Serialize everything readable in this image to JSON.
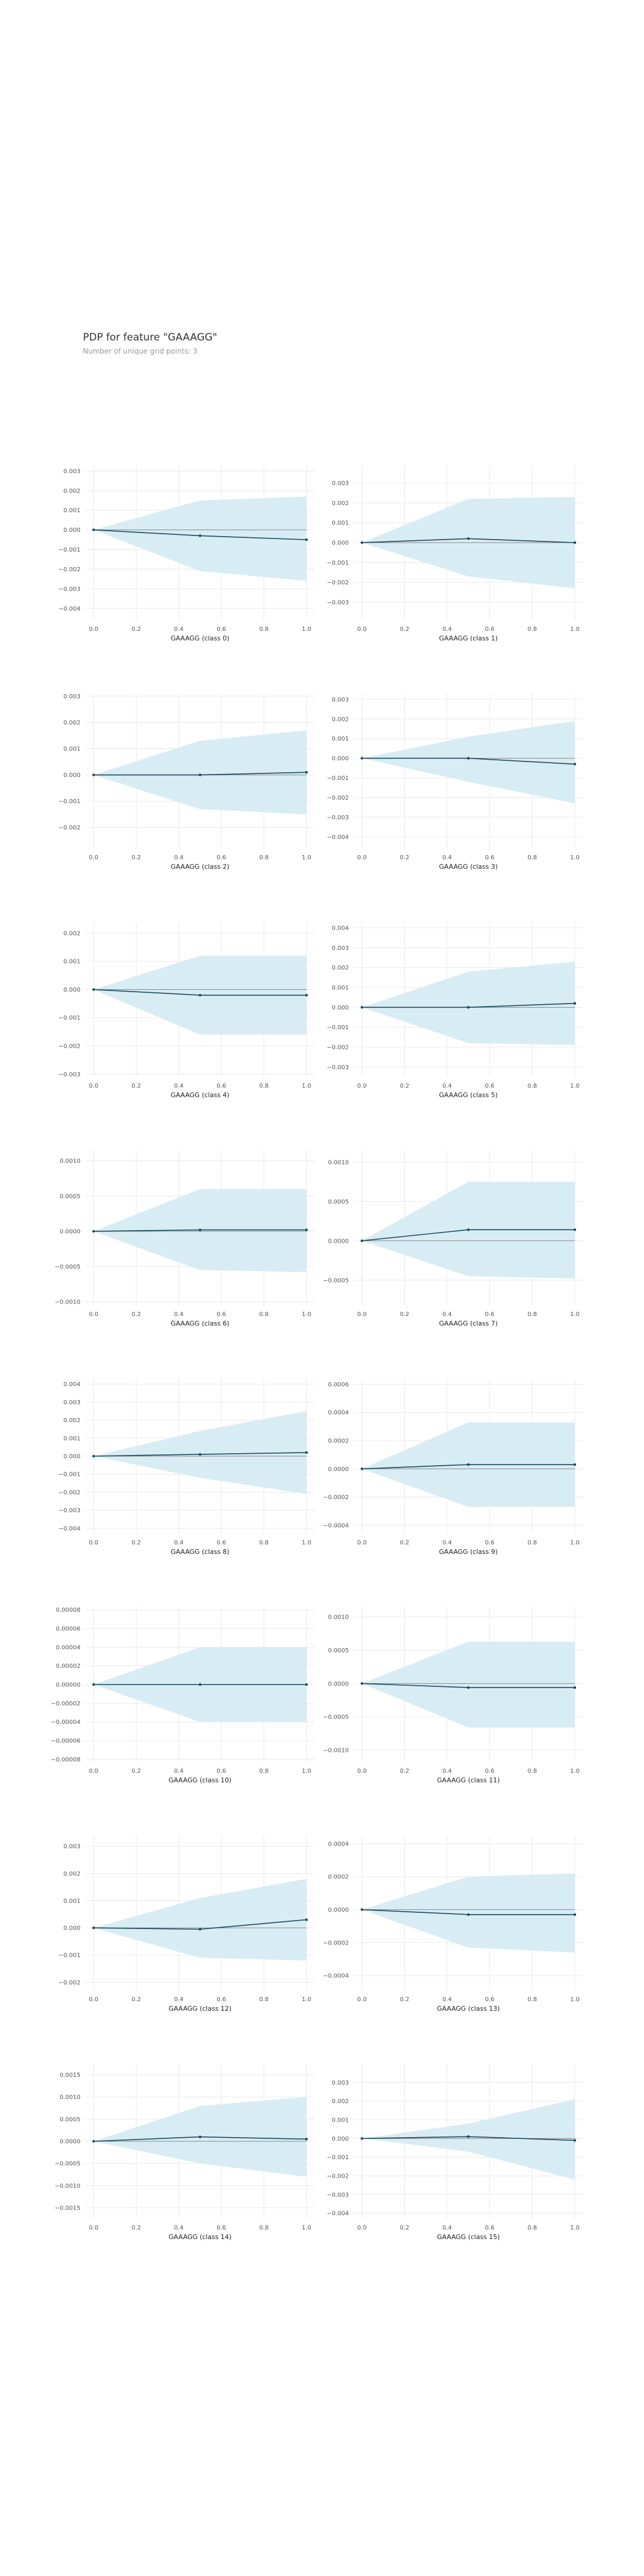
{
  "title": "PDP for feature \"GAAAGG\"",
  "subtitle": "Number of unique grid points: 3",
  "colors": {
    "band": "#d8ecf4",
    "line": "#1a4a5a",
    "zero_line": "#888888",
    "grid": "#e8e8e8",
    "tick_text": "#555555",
    "axis_label": "#222222"
  },
  "chart_data": [
    {
      "type": "line",
      "xlabel": "GAAAGG (class 0)",
      "x": [
        0,
        0.5,
        1
      ],
      "y": [
        0,
        -0.0003,
        -0.0005
      ],
      "lower": [
        0,
        -0.0021,
        -0.0026
      ],
      "upper": [
        0,
        0.0015,
        0.0017
      ],
      "ylim": [
        -0.0046,
        0.0033
      ],
      "yticks": [
        0.003,
        0.002,
        0.001,
        0.0,
        -0.001,
        -0.002,
        -0.003,
        -0.004
      ],
      "ytick_labels": [
        "0.003",
        "0.002",
        "0.001",
        "0.000",
        "−0.001",
        "−0.002",
        "−0.003",
        "−0.004"
      ],
      "xticks": [
        0,
        0.2,
        0.4,
        0.6,
        0.8,
        1.0
      ],
      "xtick_labels": [
        "0.0",
        "0.2",
        "0.4",
        "0.6",
        "0.8",
        "1.0"
      ]
    },
    {
      "type": "line",
      "xlabel": "GAAAGG (class 1)",
      "x": [
        0,
        0.5,
        1
      ],
      "y": [
        0,
        0.0002,
        0.0
      ],
      "lower": [
        0,
        -0.0017,
        -0.0023
      ],
      "upper": [
        0,
        0.0022,
        0.0023
      ],
      "ylim": [
        -0.0039,
        0.0039
      ],
      "yticks": [
        0.003,
        0.002,
        0.001,
        0.0,
        -0.001,
        -0.002,
        -0.003
      ],
      "ytick_labels": [
        "0.003",
        "0.002",
        "0.001",
        "0.000",
        "−0.001",
        "−0.002",
        "−0.003"
      ],
      "xticks": [
        0,
        0.2,
        0.4,
        0.6,
        0.8,
        1.0
      ],
      "xtick_labels": [
        "0.0",
        "0.2",
        "0.4",
        "0.6",
        "0.8",
        "1.0"
      ]
    },
    {
      "type": "line",
      "xlabel": "GAAAGG (class 2)",
      "x": [
        0,
        0.5,
        1
      ],
      "y": [
        0,
        0.0,
        0.0001
      ],
      "lower": [
        0,
        -0.0013,
        -0.0015
      ],
      "upper": [
        0,
        0.0013,
        0.0017
      ],
      "ylim": [
        -0.0028,
        0.0031
      ],
      "yticks": [
        0.003,
        0.002,
        0.001,
        0.0,
        -0.001,
        -0.002
      ],
      "ytick_labels": [
        "0.003",
        "0.002",
        "0.001",
        "0.000",
        "−0.001",
        "−0.002"
      ],
      "xticks": [
        0,
        0.2,
        0.4,
        0.6,
        0.8,
        1.0
      ],
      "xtick_labels": [
        "0.0",
        "0.2",
        "0.4",
        "0.6",
        "0.8",
        "1.0"
      ]
    },
    {
      "type": "line",
      "xlabel": "GAAAGG (class 3)",
      "x": [
        0,
        0.5,
        1
      ],
      "y": [
        0,
        0.0,
        -0.0003
      ],
      "lower": [
        0,
        -0.0012,
        -0.0023
      ],
      "upper": [
        0,
        0.0011,
        0.0019
      ],
      "ylim": [
        -0.0046,
        0.0033
      ],
      "yticks": [
        0.003,
        0.002,
        0.001,
        0.0,
        -0.001,
        -0.002,
        -0.003,
        -0.004
      ],
      "ytick_labels": [
        "0.003",
        "0.002",
        "0.001",
        "0.000",
        "−0.001",
        "−0.002",
        "−0.003",
        "−0.004"
      ],
      "xticks": [
        0,
        0.2,
        0.4,
        0.6,
        0.8,
        1.0
      ],
      "xtick_labels": [
        "0.0",
        "0.2",
        "0.4",
        "0.6",
        "0.8",
        "1.0"
      ]
    },
    {
      "type": "line",
      "xlabel": "GAAAGG (class 4)",
      "x": [
        0,
        0.5,
        1
      ],
      "y": [
        0,
        -0.0002,
        -0.0002
      ],
      "lower": [
        0,
        -0.0016,
        -0.0016
      ],
      "upper": [
        0,
        0.0012,
        0.0012
      ],
      "ylim": [
        -0.0031,
        0.0024
      ],
      "yticks": [
        0.002,
        0.001,
        0.0,
        -0.001,
        -0.002,
        -0.003
      ],
      "ytick_labels": [
        "0.002",
        "0.001",
        "0.000",
        "−0.001",
        "−0.002",
        "−0.003"
      ],
      "xticks": [
        0,
        0.2,
        0.4,
        0.6,
        0.8,
        1.0
      ],
      "xtick_labels": [
        "0.0",
        "0.2",
        "0.4",
        "0.6",
        "0.8",
        "1.0"
      ]
    },
    {
      "type": "line",
      "xlabel": "GAAAGG (class 5)",
      "x": [
        0,
        0.5,
        1
      ],
      "y": [
        0,
        0.0,
        0.0002
      ],
      "lower": [
        0,
        -0.0018,
        -0.0019
      ],
      "upper": [
        0,
        0.0018,
        0.0023
      ],
      "ylim": [
        -0.0035,
        0.0043
      ],
      "yticks": [
        0.004,
        0.003,
        0.002,
        0.001,
        0.0,
        -0.001,
        -0.002,
        -0.003
      ],
      "ytick_labels": [
        "0.004",
        "0.003",
        "0.002",
        "0.001",
        "0.000",
        "−0.001",
        "−0.002",
        "−0.003"
      ],
      "xticks": [
        0,
        0.2,
        0.4,
        0.6,
        0.8,
        1.0
      ],
      "xtick_labels": [
        "0.0",
        "0.2",
        "0.4",
        "0.6",
        "0.8",
        "1.0"
      ]
    },
    {
      "type": "line",
      "xlabel": "GAAAGG (class 6)",
      "x": [
        0,
        0.5,
        1
      ],
      "y": [
        0,
        2e-05,
        2e-05
      ],
      "lower": [
        0,
        -0.00055,
        -0.00058
      ],
      "upper": [
        0,
        0.0006,
        0.0006
      ],
      "ylim": [
        -0.00105,
        0.00115
      ],
      "yticks": [
        0.001,
        0.0005,
        0.0,
        -0.0005,
        -0.001
      ],
      "ytick_labels": [
        "0.0010",
        "0.0005",
        "0.0000",
        "−0.0005",
        "−0.0010"
      ],
      "xticks": [
        0,
        0.2,
        0.4,
        0.6,
        0.8,
        1.0
      ],
      "xtick_labels": [
        "0.0",
        "0.2",
        "0.4",
        "0.6",
        "0.8",
        "1.0"
      ]
    },
    {
      "type": "line",
      "xlabel": "GAAAGG (class 7)",
      "x": [
        0,
        0.5,
        1
      ],
      "y": [
        0,
        0.00014,
        0.00014
      ],
      "lower": [
        0,
        -0.00045,
        -0.00048
      ],
      "upper": [
        0,
        0.00075,
        0.00075
      ],
      "ylim": [
        -0.00082,
        0.00115
      ],
      "yticks": [
        0.001,
        0.0005,
        0.0,
        -0.0005
      ],
      "ytick_labels": [
        "0.0010",
        "0.0005",
        "0.0000",
        "−0.0005"
      ],
      "xticks": [
        0,
        0.2,
        0.4,
        0.6,
        0.8,
        1.0
      ],
      "xtick_labels": [
        "0.0",
        "0.2",
        "0.4",
        "0.6",
        "0.8",
        "1.0"
      ]
    },
    {
      "type": "line",
      "xlabel": "GAAAGG (class 8)",
      "x": [
        0,
        0.5,
        1
      ],
      "y": [
        0,
        0.0001,
        0.0002
      ],
      "lower": [
        0,
        -0.0012,
        -0.0021
      ],
      "upper": [
        0,
        0.0014,
        0.0025
      ],
      "ylim": [
        -0.0043,
        0.0043
      ],
      "yticks": [
        0.004,
        0.003,
        0.002,
        0.001,
        0.0,
        -0.001,
        -0.002,
        -0.003,
        -0.004
      ],
      "ytick_labels": [
        "0.004",
        "0.003",
        "0.002",
        "0.001",
        "0.000",
        "−0.001",
        "−0.002",
        "−0.003",
        "−0.004"
      ],
      "xticks": [
        0,
        0.2,
        0.4,
        0.6,
        0.8,
        1.0
      ],
      "xtick_labels": [
        "0.0",
        "0.2",
        "0.4",
        "0.6",
        "0.8",
        "1.0"
      ]
    },
    {
      "type": "line",
      "xlabel": "GAAAGG (class 9)",
      "x": [
        0,
        0.5,
        1
      ],
      "y": [
        0,
        3e-05,
        3e-05
      ],
      "lower": [
        0,
        -0.00027,
        -0.00027
      ],
      "upper": [
        0,
        0.00033,
        0.00033
      ],
      "ylim": [
        -0.00046,
        0.00064
      ],
      "yticks": [
        0.0006,
        0.0004,
        0.0002,
        0.0,
        -0.0002,
        -0.0004
      ],
      "ytick_labels": [
        "0.0006",
        "0.0004",
        "0.0002",
        "0.0000",
        "−0.0002",
        "−0.0004"
      ],
      "xticks": [
        0,
        0.2,
        0.4,
        0.6,
        0.8,
        1.0
      ],
      "xtick_labels": [
        "0.0",
        "0.2",
        "0.4",
        "0.6",
        "0.8",
        "1.0"
      ]
    },
    {
      "type": "line",
      "xlabel": "GAAAGG (class 10)",
      "x": [
        0,
        0.5,
        1
      ],
      "y": [
        0,
        0.0,
        0.0
      ],
      "lower": [
        0,
        -4e-05,
        -4e-05
      ],
      "upper": [
        0,
        4e-05,
        4e-05
      ],
      "ylim": [
        -8.3e-05,
        8.3e-05
      ],
      "yticks": [
        8e-05,
        6e-05,
        4e-05,
        2e-05,
        0.0,
        -2e-05,
        -4e-05,
        -6e-05,
        -8e-05
      ],
      "ytick_labels": [
        "0.00008",
        "0.00006",
        "0.00004",
        "0.00002",
        "0.00000",
        "−0.00002",
        "−0.00004",
        "−0.00006",
        "−0.00008"
      ],
      "xticks": [
        0,
        0.2,
        0.4,
        0.6,
        0.8,
        1.0
      ],
      "xtick_labels": [
        "0.0",
        "0.2",
        "0.4",
        "0.6",
        "0.8",
        "1.0"
      ]
    },
    {
      "type": "line",
      "xlabel": "GAAAGG (class 11)",
      "x": [
        0,
        0.5,
        1
      ],
      "y": [
        0,
        -6e-05,
        -6e-05
      ],
      "lower": [
        0,
        -0.00066,
        -0.00066
      ],
      "upper": [
        0,
        0.00063,
        0.00063
      ],
      "ylim": [
        -0.00118,
        0.00115
      ],
      "yticks": [
        0.001,
        0.0005,
        0.0,
        -0.0005,
        -0.001
      ],
      "ytick_labels": [
        "0.0010",
        "0.0005",
        "0.0000",
        "−0.0005",
        "−0.0010"
      ],
      "xticks": [
        0,
        0.2,
        0.4,
        0.6,
        0.8,
        1.0
      ],
      "xtick_labels": [
        "0.0",
        "0.2",
        "0.4",
        "0.6",
        "0.8",
        "1.0"
      ]
    },
    {
      "type": "line",
      "xlabel": "GAAAGG (class 12)",
      "x": [
        0,
        0.5,
        1
      ],
      "y": [
        0,
        -5e-05,
        0.0003
      ],
      "lower": [
        0,
        -0.0011,
        -0.0012
      ],
      "upper": [
        0,
        0.0011,
        0.0018
      ],
      "ylim": [
        -0.0023,
        0.0034
      ],
      "yticks": [
        0.003,
        0.002,
        0.001,
        0.0,
        -0.001,
        -0.002
      ],
      "ytick_labels": [
        "0.003",
        "0.002",
        "0.001",
        "0.000",
        "−0.001",
        "−0.002"
      ],
      "xticks": [
        0,
        0.2,
        0.4,
        0.6,
        0.8,
        1.0
      ],
      "xtick_labels": [
        "0.0",
        "0.2",
        "0.4",
        "0.6",
        "0.8",
        "1.0"
      ]
    },
    {
      "type": "line",
      "xlabel": "GAAAGG (class 13)",
      "x": [
        0,
        0.5,
        1
      ],
      "y": [
        0,
        -3e-05,
        -3e-05
      ],
      "lower": [
        0,
        -0.00023,
        -0.00026
      ],
      "upper": [
        0,
        0.0002,
        0.00022
      ],
      "ylim": [
        -0.00049,
        0.00045
      ],
      "yticks": [
        0.0004,
        0.0002,
        0.0,
        -0.0002,
        -0.0004
      ],
      "ytick_labels": [
        "0.0004",
        "0.0002",
        "0.0000",
        "−0.0002",
        "−0.0004"
      ],
      "xticks": [
        0,
        0.2,
        0.4,
        0.6,
        0.8,
        1.0
      ],
      "xtick_labels": [
        "0.0",
        "0.2",
        "0.4",
        "0.6",
        "0.8",
        "1.0"
      ]
    },
    {
      "type": "line",
      "xlabel": "GAAAGG (class 14)",
      "x": [
        0,
        0.5,
        1
      ],
      "y": [
        0,
        0.0001,
        5e-05
      ],
      "lower": [
        0,
        -0.0005,
        -0.0008
      ],
      "upper": [
        0,
        0.0008,
        0.001
      ],
      "ylim": [
        -0.00175,
        0.00175
      ],
      "yticks": [
        0.0015,
        0.001,
        0.0005,
        0.0,
        -0.0005,
        -0.001,
        -0.0015
      ],
      "ytick_labels": [
        "0.0015",
        "0.0010",
        "0.0005",
        "0.0000",
        "−0.0005",
        "−0.0010",
        "−0.0015"
      ],
      "xticks": [
        0,
        0.2,
        0.4,
        0.6,
        0.8,
        1.0
      ],
      "xtick_labels": [
        "0.0",
        "0.2",
        "0.4",
        "0.6",
        "0.8",
        "1.0"
      ]
    },
    {
      "type": "line",
      "xlabel": "GAAAGG (class 15)",
      "x": [
        0,
        0.5,
        1
      ],
      "y": [
        0,
        0.0001,
        -0.0001
      ],
      "lower": [
        0,
        -0.0007,
        -0.0022
      ],
      "upper": [
        0,
        0.0008,
        0.0021
      ],
      "ylim": [
        -0.0043,
        0.004
      ],
      "yticks": [
        0.003,
        0.002,
        0.001,
        0.0,
        -0.001,
        -0.002,
        -0.003,
        -0.004
      ],
      "ytick_labels": [
        "0.003",
        "0.002",
        "0.001",
        "0.000",
        "−0.001",
        "−0.002",
        "−0.003",
        "−0.004"
      ],
      "xticks": [
        0,
        0.2,
        0.4,
        0.6,
        0.8,
        1.0
      ],
      "xtick_labels": [
        "0.0",
        "0.2",
        "0.4",
        "0.6",
        "0.8",
        "1.0"
      ]
    }
  ]
}
